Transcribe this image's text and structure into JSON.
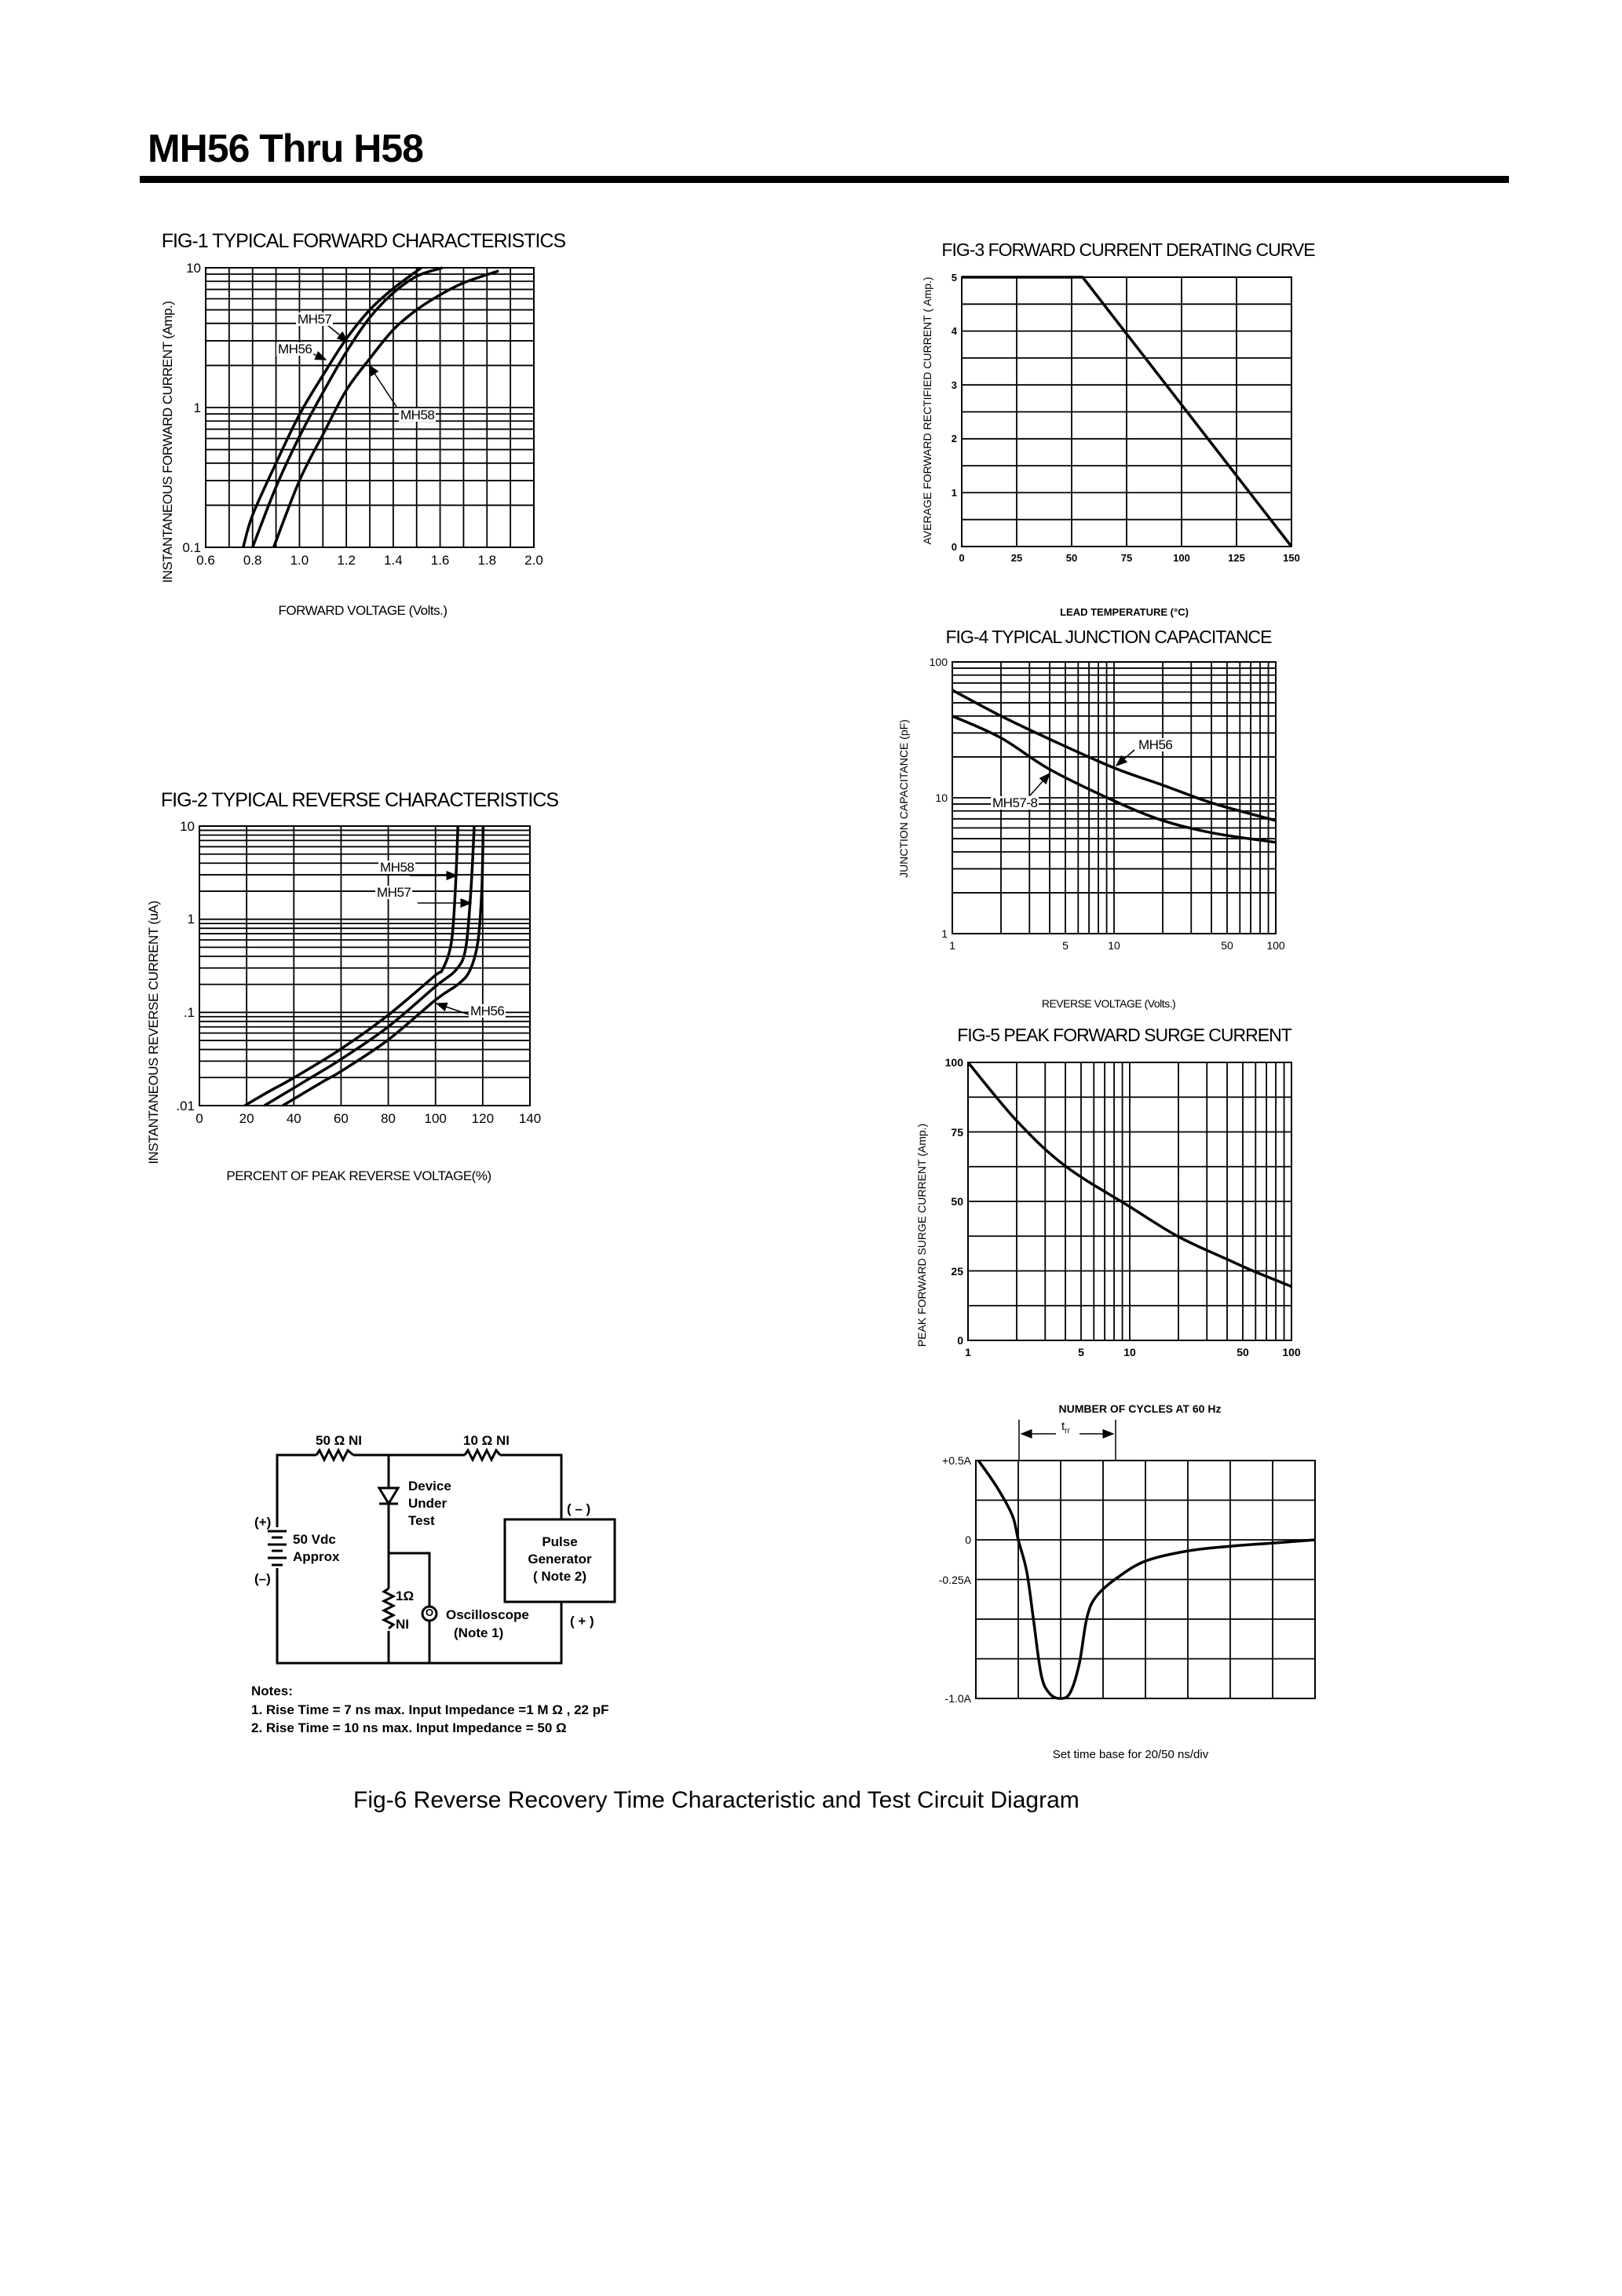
{
  "header": {
    "title": "MH56 Thru H58"
  },
  "chart_data": [
    {
      "type": "line",
      "title": "FIG-1 TYPICAL FORWARD CHARACTERISTICS",
      "xlabel": "FORWARD VOLTAGE (Volts.)",
      "ylabel": "INSTANTANEOUS FORWARD CURRENT (Amp.)",
      "x_scale": "linear",
      "y_scale": "log",
      "xlim": [
        0.6,
        2.0
      ],
      "ylim": [
        0.1,
        10
      ],
      "grid": true,
      "xticks": [
        {
          "v": 0.6,
          "label": "0.6"
        },
        {
          "v": 0.8,
          "label": "0.8"
        },
        {
          "v": 1.0,
          "label": "1.0"
        },
        {
          "v": 1.2,
          "label": "1.2"
        },
        {
          "v": 1.4,
          "label": "1.4"
        },
        {
          "v": 1.6,
          "label": "1.6"
        },
        {
          "v": 1.8,
          "label": "1.8"
        },
        {
          "v": 2.0,
          "label": "2.0"
        }
      ],
      "yticks": [
        {
          "v": 0.1,
          "label": "0.1"
        },
        {
          "v": 1,
          "label": "1"
        },
        {
          "v": 10,
          "label": "10"
        }
      ],
      "series": [
        {
          "name": "MH57",
          "points": [
            [
              0.76,
              0.1
            ],
            [
              0.8,
              0.17
            ],
            [
              0.9,
              0.4
            ],
            [
              1.0,
              0.89
            ],
            [
              1.1,
              1.7
            ],
            [
              1.2,
              3.1
            ],
            [
              1.3,
              5.0
            ],
            [
              1.4,
              7.1
            ],
            [
              1.52,
              10
            ]
          ]
        },
        {
          "name": "MH56",
          "points": [
            [
              0.8,
              0.1
            ],
            [
              0.9,
              0.27
            ],
            [
              1.0,
              0.62
            ],
            [
              1.1,
              1.28
            ],
            [
              1.2,
              2.5
            ],
            [
              1.3,
              4.4
            ],
            [
              1.4,
              6.6
            ],
            [
              1.5,
              8.7
            ],
            [
              1.61,
              10
            ]
          ]
        },
        {
          "name": "MH58",
          "points": [
            [
              0.89,
              0.1
            ],
            [
              1.0,
              0.3
            ],
            [
              1.1,
              0.64
            ],
            [
              1.2,
              1.33
            ],
            [
              1.3,
              2.24
            ],
            [
              1.4,
              3.6
            ],
            [
              1.5,
              5.0
            ],
            [
              1.6,
              6.4
            ],
            [
              1.7,
              7.8
            ],
            [
              1.85,
              9.5
            ]
          ]
        }
      ]
    },
    {
      "type": "line",
      "title": "FIG-2 TYPICAL REVERSE CHARACTERISTICS",
      "xlabel": "PERCENT OF PEAK REVERSE VOLTAGE(%)",
      "ylabel": "INSTANTANEOUS REVERSE CURRENT (uA)",
      "x_scale": "linear",
      "y_scale": "log",
      "xlim": [
        0,
        140
      ],
      "ylim": [
        0.01,
        10
      ],
      "grid": true,
      "xticks": [
        {
          "v": 0,
          "label": "0"
        },
        {
          "v": 20,
          "label": "20"
        },
        {
          "v": 40,
          "label": "40"
        },
        {
          "v": 60,
          "label": "60"
        },
        {
          "v": 80,
          "label": "80"
        },
        {
          "v": 100,
          "label": "100"
        },
        {
          "v": 120,
          "label": "120"
        },
        {
          "v": 140,
          "label": "140"
        }
      ],
      "yticks": [
        {
          "v": 0.01,
          "label": ".01"
        },
        {
          "v": 0.1,
          "label": ".1"
        },
        {
          "v": 1,
          "label": "1"
        },
        {
          "v": 10,
          "label": "10"
        }
      ],
      "series": [
        {
          "name": "MH58",
          "points": [
            [
              19.2,
              0.01
            ],
            [
              29.7,
              0.0143
            ],
            [
              39.7,
              0.0197
            ],
            [
              59.6,
              0.04
            ],
            [
              79.6,
              0.092
            ],
            [
              99.5,
              0.245
            ],
            [
              103,
              0.29
            ],
            [
              106.7,
              0.56
            ],
            [
              108.4,
              2.05
            ],
            [
              109.5,
              10
            ]
          ]
        },
        {
          "name": "MH57",
          "points": [
            [
              27.5,
              0.01
            ],
            [
              46.9,
              0.0197
            ],
            [
              59.6,
              0.031
            ],
            [
              79.6,
              0.069
            ],
            [
              100,
              0.19
            ],
            [
              108.9,
              0.29
            ],
            [
              112.8,
              0.49
            ],
            [
              115,
              2.05
            ],
            [
              116.4,
              10
            ]
          ]
        },
        {
          "name": "MH56",
          "points": [
            [
              35.3,
              0.01
            ],
            [
              53,
              0.0185
            ],
            [
              59.6,
              0.023
            ],
            [
              79.6,
              0.05
            ],
            [
              100,
              0.136
            ],
            [
              109.5,
              0.2
            ],
            [
              114.5,
              0.28
            ],
            [
              117.9,
              0.56
            ],
            [
              119.6,
              2.05
            ],
            [
              120.2,
              10
            ]
          ]
        }
      ]
    },
    {
      "type": "line",
      "title": "FIG-3 FORWARD CURRENT DERATING CURVE",
      "xlabel": "LEAD TEMPERATURE (°C)",
      "ylabel": "AVERAGE FORWARD RECTIFIED CURRENT ( Amp.)",
      "x_scale": "linear",
      "y_scale": "linear",
      "xlim": [
        0,
        150
      ],
      "ylim": [
        0,
        5
      ],
      "grid": true,
      "xticks": [
        {
          "v": 0,
          "label": "0"
        },
        {
          "v": 25,
          "label": "25"
        },
        {
          "v": 50,
          "label": "50"
        },
        {
          "v": 75,
          "label": "75"
        },
        {
          "v": 100,
          "label": "100"
        },
        {
          "v": 125,
          "label": "125"
        },
        {
          "v": 150,
          "label": "150"
        }
      ],
      "yticks": [
        {
          "v": 0,
          "label": "0"
        },
        {
          "v": 1,
          "label": "1"
        },
        {
          "v": 2,
          "label": "2"
        },
        {
          "v": 3,
          "label": "3"
        },
        {
          "v": 4,
          "label": "4"
        },
        {
          "v": 5,
          "label": "5"
        }
      ],
      "series": [
        {
          "points": [
            [
              0,
              5
            ],
            [
              55,
              5
            ],
            [
              150,
              0
            ]
          ]
        }
      ]
    },
    {
      "type": "line",
      "title": "FIG-4 TYPICAL JUNCTION CAPACITANCE",
      "xlabel": "REVERSE VOLTAGE (Volts.)",
      "ylabel": "JUNCTION CAPACITANCE (pF)",
      "x_scale": "log",
      "y_scale": "log",
      "xlim": [
        1,
        100
      ],
      "ylim": [
        1,
        100
      ],
      "grid": true,
      "xticks": [
        {
          "v": 1,
          "label": "1"
        },
        {
          "v": 5,
          "label": "5"
        },
        {
          "v": 10,
          "label": "10"
        },
        {
          "v": 50,
          "label": "50"
        },
        {
          "v": 100,
          "label": "100"
        }
      ],
      "yticks": [
        {
          "v": 1,
          "label": "1"
        },
        {
          "v": 10,
          "label": "10"
        },
        {
          "v": 100,
          "label": "100"
        }
      ],
      "series": [
        {
          "name": "MH56",
          "points": [
            [
              1,
              62
            ],
            [
              2,
              40
            ],
            [
              4,
              27
            ],
            [
              10,
              16.6
            ],
            [
              20,
              12.4
            ],
            [
              41,
              9.1
            ],
            [
              100,
              6.8
            ]
          ]
        },
        {
          "name": "MH57-8",
          "points": [
            [
              1,
              40
            ],
            [
              2,
              27.6
            ],
            [
              4,
              16.2
            ],
            [
              10,
              9.5
            ],
            [
              20,
              6.8
            ],
            [
              41,
              5.5
            ],
            [
              100,
              4.7
            ]
          ]
        }
      ]
    },
    {
      "type": "line",
      "title": "FIG-5 PEAK FORWARD SURGE CURRENT",
      "xlabel": "NUMBER OF CYCLES AT 60 Hz",
      "ylabel": "PEAK FORWARD SURGE CURRENT (Amp.)",
      "x_scale": "log",
      "y_scale": "linear",
      "xlim": [
        1,
        100
      ],
      "ylim": [
        0,
        100
      ],
      "grid": true,
      "xticks": [
        {
          "v": 1,
          "label": "1"
        },
        {
          "v": 5,
          "label": "5"
        },
        {
          "v": 10,
          "label": "10"
        },
        {
          "v": 50,
          "label": "50"
        },
        {
          "v": 100,
          "label": "100"
        }
      ],
      "yticks": [
        {
          "v": 0,
          "label": "0"
        },
        {
          "v": 25,
          "label": "25"
        },
        {
          "v": 50,
          "label": "50"
        },
        {
          "v": 75,
          "label": "75"
        },
        {
          "v": 100,
          "label": "100"
        }
      ],
      "series": [
        {
          "points": [
            [
              1,
              100
            ],
            [
              2,
              79
            ],
            [
              4,
              62.7
            ],
            [
              10,
              48.1
            ],
            [
              20,
              37.3
            ],
            [
              41,
              28.9
            ],
            [
              60,
              24.6
            ],
            [
              100,
              19.4
            ]
          ]
        }
      ]
    },
    {
      "type": "line",
      "title": "",
      "xlabel": "",
      "ylabel": "",
      "x_scale": "linear",
      "y_scale": "linear",
      "xlim": [
        0,
        8
      ],
      "ylim": [
        -1.0,
        0.5
      ],
      "grid": true,
      "xticks": [],
      "yticks": [
        {
          "v": 0.5,
          "label": "+0.5A"
        },
        {
          "v": 0,
          "label": "0"
        },
        {
          "v": -0.25,
          "label": "-0.25A"
        },
        {
          "v": -1.0,
          "label": "-1.0A"
        }
      ],
      "annotations": {
        "trr": {
          "main": "t",
          "sub": "rr"
        },
        "timebase": "Set time base for 20/50  ns/div"
      },
      "series": [
        {
          "points": [
            [
              0.06,
              0.5
            ],
            [
              0.49,
              0.335
            ],
            [
              0.86,
              0.154
            ],
            [
              1.0,
              0.0
            ],
            [
              1.2,
              -0.2
            ],
            [
              1.36,
              -0.505
            ],
            [
              1.54,
              -0.85
            ],
            [
              1.73,
              -0.966
            ],
            [
              1.98,
              -1.0
            ],
            [
              2.22,
              -0.966
            ],
            [
              2.44,
              -0.78
            ],
            [
              2.62,
              -0.49
            ],
            [
              2.84,
              -0.357
            ],
            [
              3.33,
              -0.24
            ],
            [
              4.0,
              -0.134
            ],
            [
              5.0,
              -0.07
            ],
            [
              6.02,
              -0.04
            ],
            [
              7.04,
              -0.02
            ],
            [
              8.0,
              0.0
            ]
          ]
        }
      ]
    }
  ],
  "circuit": {
    "r1_label": "50 Ω  NI",
    "r2_label": "10 Ω  NI",
    "dut": [
      "Device",
      "Under",
      "Test"
    ],
    "battery_plus": "(+)",
    "battery_minus": "(–)",
    "battery": [
      "50 Vdc",
      "Approx"
    ],
    "r3_value": "1Ω",
    "r3_type": "NI",
    "scope_symbol": "O",
    "scope": [
      "Oscilloscope",
      "(Note 1)"
    ],
    "pulse": [
      "Pulse",
      "Generator",
      "( Note 2)"
    ],
    "pg_minus": "( – )",
    "pg_plus": "( + )",
    "notes_title": "Notes:",
    "notes": [
      "1. Rise Time = 7 ns max. Input Impedance =1 M Ω , 22 pF",
      "2. Rise Time = 10 ns max. Input Impedance = 50 Ω"
    ]
  },
  "fig6_caption": "Fig-6 Reverse Recovery Time Characteristic and Test Circuit Diagram"
}
